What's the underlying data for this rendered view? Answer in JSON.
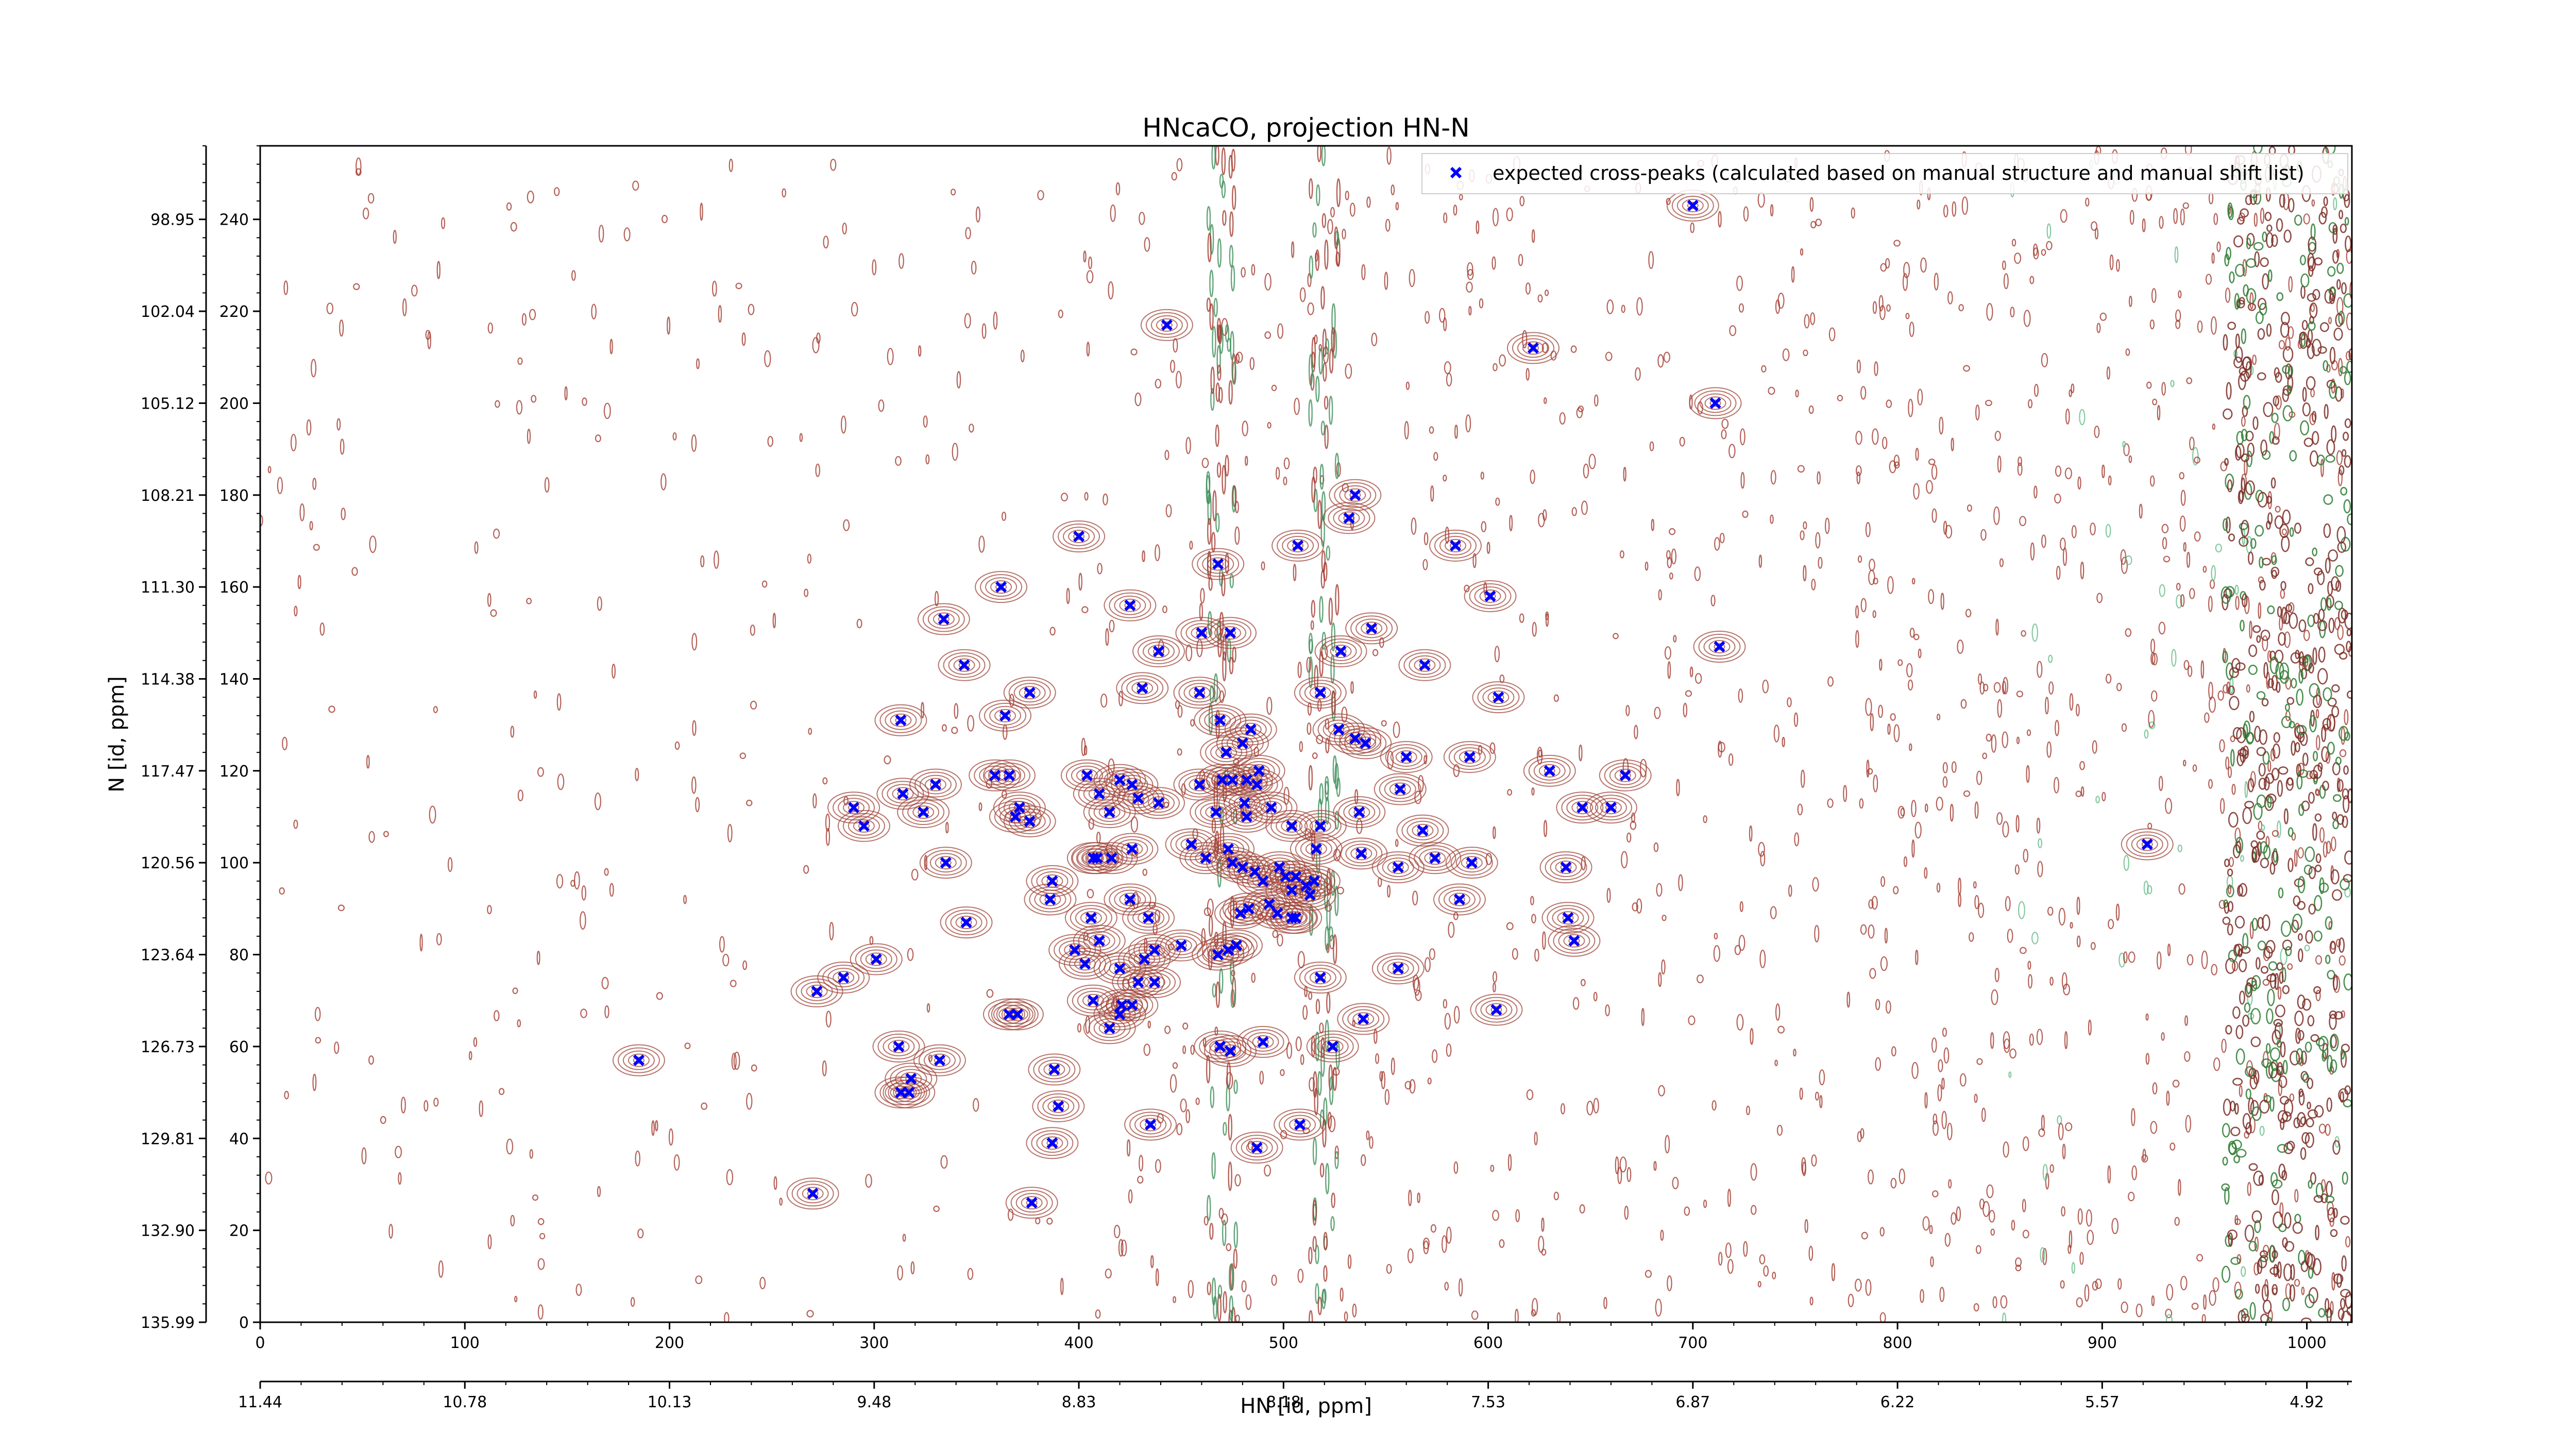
{
  "chart_data": {
    "type": "scatter",
    "title": "HNcaCO, projection HN-N",
    "xlabel": "HN [id, ppm]",
    "ylabel": "N [id, ppm]",
    "xlim": [
      0,
      1022
    ],
    "ylim": [
      0,
      256
    ],
    "x_ticks": [
      0,
      100,
      200,
      300,
      400,
      500,
      600,
      700,
      800,
      900,
      1000
    ],
    "y_ticks": [
      0,
      20,
      40,
      60,
      80,
      100,
      120,
      140,
      160,
      180,
      200,
      220,
      240
    ],
    "secondary_x_ticks": [
      {
        "at": 0,
        "label": "11.44"
      },
      {
        "at": 100,
        "label": "10.78"
      },
      {
        "at": 200,
        "label": "10.13"
      },
      {
        "at": 300,
        "label": "9.48"
      },
      {
        "at": 400,
        "label": "8.83"
      },
      {
        "at": 500,
        "label": "8.18"
      },
      {
        "at": 600,
        "label": "7.53"
      },
      {
        "at": 700,
        "label": "6.87"
      },
      {
        "at": 800,
        "label": "6.22"
      },
      {
        "at": 900,
        "label": "5.57"
      },
      {
        "at": 1000,
        "label": "4.92"
      }
    ],
    "secondary_y_ticks": [
      {
        "at": 0,
        "label": "135.99"
      },
      {
        "at": 20,
        "label": "132.90"
      },
      {
        "at": 40,
        "label": "129.81"
      },
      {
        "at": 60,
        "label": "126.73"
      },
      {
        "at": 80,
        "label": "123.64"
      },
      {
        "at": 100,
        "label": "120.56"
      },
      {
        "at": 120,
        "label": "117.47"
      },
      {
        "at": 140,
        "label": "114.38"
      },
      {
        "at": 160,
        "label": "111.30"
      },
      {
        "at": 180,
        "label": "108.21"
      },
      {
        "at": 200,
        "label": "105.12"
      },
      {
        "at": 220,
        "label": "102.04"
      },
      {
        "at": 240,
        "label": "98.95"
      }
    ],
    "legend_location": "upper right",
    "grid": false,
    "series": [
      {
        "name": "expected cross-peaks (calculated based on manual structure and manual shift list)",
        "color": "#0000ff",
        "marker": "x",
        "points": [
          [
            700,
            243
          ],
          [
            443,
            217
          ],
          [
            622,
            212
          ],
          [
            711,
            200
          ],
          [
            535,
            180
          ],
          [
            532,
            175
          ],
          [
            400,
            171
          ],
          [
            507,
            169
          ],
          [
            584,
            169
          ],
          [
            468,
            165
          ],
          [
            362,
            160
          ],
          [
            601,
            158
          ],
          [
            425,
            156
          ],
          [
            334,
            153
          ],
          [
            460,
            150
          ],
          [
            474,
            150
          ],
          [
            543,
            151
          ],
          [
            439,
            146
          ],
          [
            528,
            146
          ],
          [
            713,
            147
          ],
          [
            344,
            143
          ],
          [
            569,
            143
          ],
          [
            431,
            138
          ],
          [
            459,
            137
          ],
          [
            376,
            137
          ],
          [
            518,
            137
          ],
          [
            605,
            136
          ],
          [
            364,
            132
          ],
          [
            313,
            131
          ],
          [
            469,
            131
          ],
          [
            484,
            129
          ],
          [
            527,
            129
          ],
          [
            535,
            127
          ],
          [
            540,
            126
          ],
          [
            480,
            126
          ],
          [
            472,
            124
          ],
          [
            560,
            123
          ],
          [
            591,
            123
          ],
          [
            630,
            120
          ],
          [
            667,
            119
          ],
          [
            359,
            119
          ],
          [
            366,
            119
          ],
          [
            404,
            119
          ],
          [
            420,
            118
          ],
          [
            488,
            120
          ],
          [
            470,
            118
          ],
          [
            475,
            118
          ],
          [
            426,
            117
          ],
          [
            459,
            117
          ],
          [
            482,
            118
          ],
          [
            487,
            117
          ],
          [
            330,
            117
          ],
          [
            410,
            115
          ],
          [
            429,
            114
          ],
          [
            439,
            113
          ],
          [
            481,
            113
          ],
          [
            557,
            116
          ],
          [
            314,
            115
          ],
          [
            371,
            112
          ],
          [
            646,
            112
          ],
          [
            660,
            112
          ],
          [
            415,
            111
          ],
          [
            482,
            110
          ],
          [
            494,
            112
          ],
          [
            537,
            111
          ],
          [
            467,
            111
          ],
          [
            324,
            111
          ],
          [
            290,
            112
          ],
          [
            369,
            110
          ],
          [
            376,
            109
          ],
          [
            295,
            108
          ],
          [
            504,
            108
          ],
          [
            518,
            108
          ],
          [
            568,
            107
          ],
          [
            426,
            103
          ],
          [
            455,
            104
          ],
          [
            473,
            103
          ],
          [
            516,
            103
          ],
          [
            538,
            102
          ],
          [
            407,
            101
          ],
          [
            462,
            101
          ],
          [
            387,
            96
          ],
          [
            335,
            100
          ],
          [
            409,
            101
          ],
          [
            416,
            101
          ],
          [
            498,
            99
          ],
          [
            556,
            99
          ],
          [
            574,
            101
          ],
          [
            592,
            100
          ],
          [
            638,
            99
          ],
          [
            475,
            100
          ],
          [
            480,
            99
          ],
          [
            486,
            98
          ],
          [
            501,
            97
          ],
          [
            506,
            97
          ],
          [
            511,
            95
          ],
          [
            515,
            96
          ],
          [
            490,
            96
          ],
          [
            504,
            94
          ],
          [
            513,
            93
          ],
          [
            386,
            92
          ],
          [
            425,
            92
          ],
          [
            479,
            89
          ],
          [
            483,
            90
          ],
          [
            497,
            89
          ],
          [
            493,
            91
          ],
          [
            506,
            88
          ],
          [
            586,
            92
          ],
          [
            639,
            88
          ],
          [
            345,
            87
          ],
          [
            406,
            88
          ],
          [
            434,
            88
          ],
          [
            504,
            88
          ],
          [
            410,
            83
          ],
          [
            473,
            81
          ],
          [
            477,
            82
          ],
          [
            450,
            82
          ],
          [
            437,
            81
          ],
          [
            468,
            80
          ],
          [
            642,
            83
          ],
          [
            398,
            81
          ],
          [
            432,
            79
          ],
          [
            301,
            79
          ],
          [
            403,
            78
          ],
          [
            420,
            77
          ],
          [
            556,
            77
          ],
          [
            285,
            75
          ],
          [
            429,
            74
          ],
          [
            437,
            74
          ],
          [
            518,
            75
          ],
          [
            272,
            72
          ],
          [
            407,
            70
          ],
          [
            421,
            69
          ],
          [
            426,
            69
          ],
          [
            420,
            67
          ],
          [
            604,
            68
          ],
          [
            366,
            67
          ],
          [
            370,
            67
          ],
          [
            539,
            66
          ],
          [
            415,
            64
          ],
          [
            312,
            60
          ],
          [
            469,
            60
          ],
          [
            490,
            61
          ],
          [
            524,
            60
          ],
          [
            474,
            59
          ],
          [
            332,
            57
          ],
          [
            185,
            57
          ],
          [
            388,
            55
          ],
          [
            318,
            53
          ],
          [
            317,
            50
          ],
          [
            313,
            50
          ],
          [
            390,
            47
          ],
          [
            435,
            43
          ],
          [
            508,
            43
          ],
          [
            387,
            39
          ],
          [
            487,
            38
          ],
          [
            270,
            28
          ],
          [
            377,
            26
          ],
          [
            922,
            104
          ]
        ]
      }
    ]
  }
}
